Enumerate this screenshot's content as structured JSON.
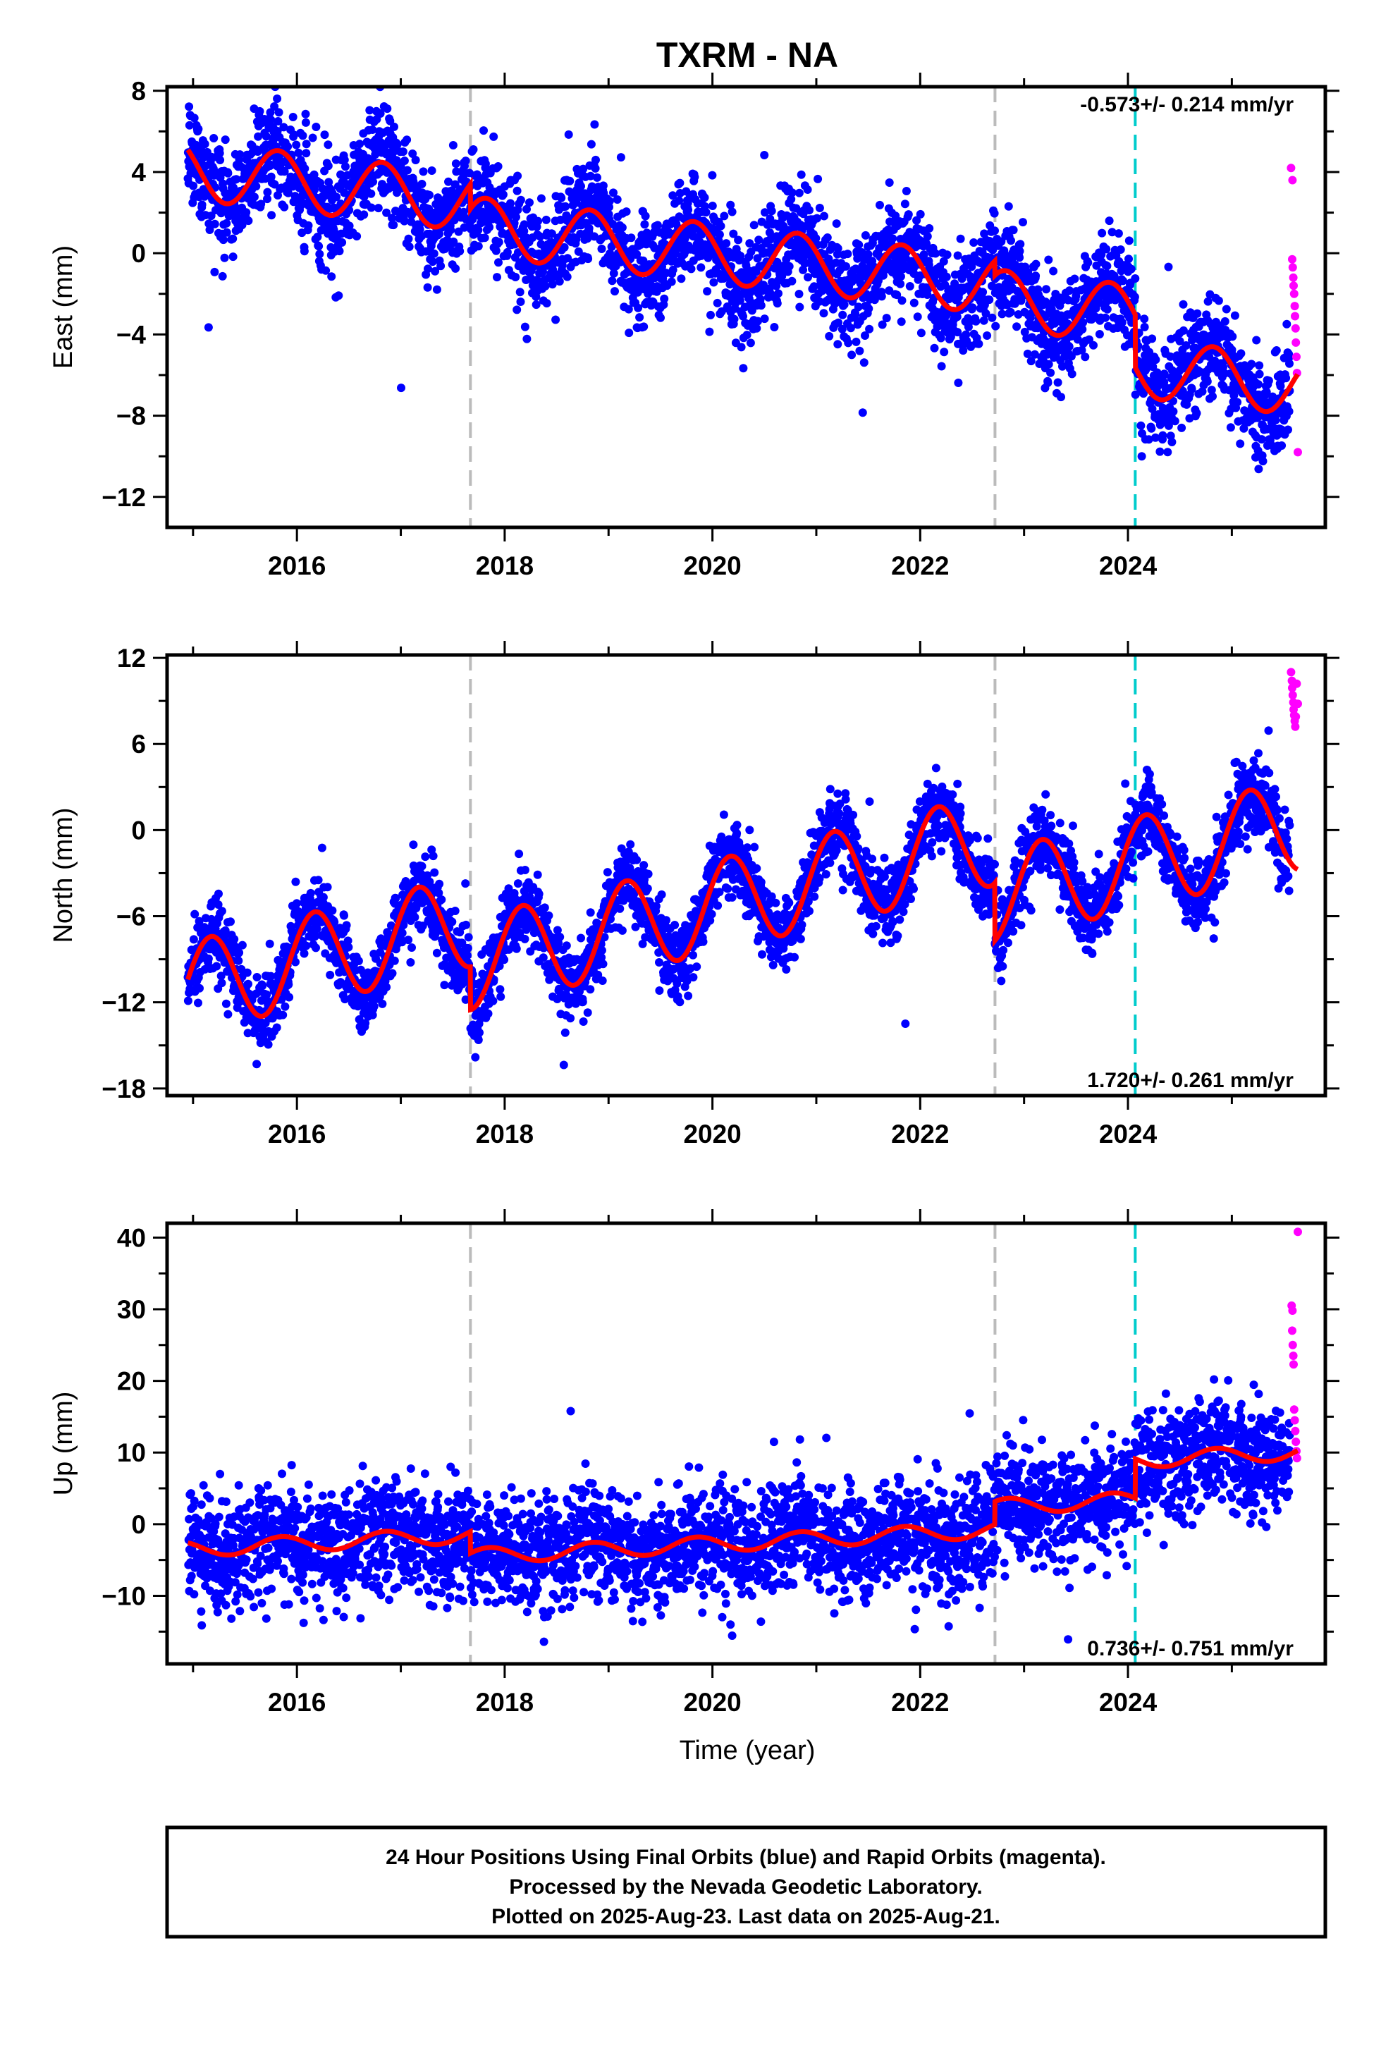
{
  "title": "TXRM - NA",
  "x_axis_label": "Time (year)",
  "footer": {
    "line1": "24 Hour Positions Using Final Orbits (blue) and Rapid Orbits (magenta).",
    "line2": "Processed by the Nevada Geodetic Laboratory.",
    "line3": "Plotted on 2025-Aug-23. Last data on 2025-Aug-21."
  },
  "colors": {
    "final_orbits": "#0000ff",
    "rapid_orbits": "#ff00ff",
    "model": "#ff0000",
    "equipment_change": "#bbbbbb",
    "earthquake": "#00cccc"
  },
  "chart_data": [
    {
      "type": "scatter",
      "component": "East",
      "ylabel": "East (mm)",
      "xlabel": "",
      "xlim": [
        2014.75,
        2025.9
      ],
      "ylim": [
        -13.5,
        8.2
      ],
      "x_ticks": [
        2016,
        2018,
        2020,
        2022,
        2024
      ],
      "y_ticks": [
        -12,
        -8,
        -4,
        0,
        4,
        8
      ],
      "rate_label": "-0.573+/- 0.214 mm/yr",
      "rate_position": "top-right",
      "offsets_gray": [
        2017.67,
        2022.72
      ],
      "offsets_cyan": [
        2024.07
      ],
      "data_start": 2014.95,
      "final_end": 2025.56,
      "model": {
        "x0": 2014.95,
        "y0": 4.1,
        "trend": -0.573,
        "annual_amp": 1.45,
        "annual_phase": 2.7,
        "noise": 1.3,
        "steps": [
          [
            2017.67,
            -1.2
          ],
          [
            2022.72,
            -0.7
          ],
          [
            2024.07,
            -2.6
          ]
        ]
      },
      "rapid": [
        [
          "2025-07-28",
          4.2
        ],
        [
          "2025-08-02",
          3.6
        ],
        [
          "2025-08-01",
          -0.3
        ],
        [
          "2025-08-03",
          -0.7
        ],
        [
          "2025-08-05",
          -1.2
        ],
        [
          "2025-08-06",
          -1.6
        ],
        [
          "2025-08-08",
          -2.0
        ],
        [
          "2025-08-10",
          -2.6
        ],
        [
          "2025-08-11",
          -3.1
        ],
        [
          "2025-08-13",
          -3.7
        ],
        [
          "2025-08-14",
          -4.4
        ],
        [
          "2025-08-16",
          -5.1
        ],
        [
          "2025-08-18",
          -5.9
        ],
        [
          "2025-08-21",
          -9.8
        ]
      ]
    },
    {
      "type": "scatter",
      "component": "North",
      "ylabel": "North (mm)",
      "xlabel": "",
      "xlim": [
        2014.75,
        2025.9
      ],
      "ylim": [
        -18.5,
        12.2
      ],
      "x_ticks": [
        2016,
        2018,
        2020,
        2022,
        2024
      ],
      "y_ticks": [
        -18,
        -12,
        -6,
        0,
        6,
        12
      ],
      "rate_label": "1.720+/- 0.261 mm/yr",
      "rate_position": "bottom-right",
      "offsets_gray": [
        2017.67,
        2022.72
      ],
      "offsets_cyan": [
        2024.07
      ],
      "data_start": 2014.95,
      "final_end": 2025.56,
      "model": {
        "x0": 2014.95,
        "y0": -11.0,
        "trend": 1.72,
        "annual_amp": 3.2,
        "annual_phase": 0.5,
        "noise": 1.3,
        "steps": [
          [
            2017.67,
            -3.0
          ],
          [
            2022.72,
            -4.0
          ],
          [
            2024.07,
            0.0
          ]
        ]
      },
      "rapid": [
        [
          "2025-07-28",
          11.0
        ],
        [
          "2025-07-31",
          10.4
        ],
        [
          "2025-08-01",
          9.9
        ],
        [
          "2025-08-03",
          9.4
        ],
        [
          "2025-08-05",
          8.9
        ],
        [
          "2025-08-06",
          8.4
        ],
        [
          "2025-08-08",
          8.0
        ],
        [
          "2025-08-10",
          7.6
        ],
        [
          "2025-08-12",
          7.2
        ],
        [
          "2025-08-14",
          7.9
        ],
        [
          "2025-08-17",
          10.2
        ],
        [
          "2025-08-21",
          8.8
        ]
      ]
    },
    {
      "type": "scatter",
      "component": "Up",
      "ylabel": "Up (mm)",
      "xlabel": "Time (year)",
      "xlim": [
        2014.75,
        2025.9
      ],
      "ylim": [
        -19.5,
        42
      ],
      "x_ticks": [
        2016,
        2018,
        2020,
        2022,
        2024
      ],
      "y_ticks": [
        -10,
        0,
        10,
        20,
        30,
        40
      ],
      "rate_label": "0.736+/- 0.751 mm/yr",
      "rate_position": "bottom-right",
      "offsets_gray": [
        2017.67,
        2022.72
      ],
      "offsets_cyan": [
        2024.07
      ],
      "data_start": 2014.95,
      "final_end": 2025.56,
      "model": {
        "x0": 2014.95,
        "y0": -3.5,
        "trend": 0.736,
        "annual_amp": 1.1,
        "annual_phase": 2.5,
        "noise": 3.9,
        "steps": [
          [
            2017.67,
            -3.0
          ],
          [
            2022.72,
            3.2
          ],
          [
            2024.07,
            5.5
          ]
        ]
      },
      "rapid": [
        [
          "2025-08-21",
          40.8
        ],
        [
          "2025-07-30",
          30.5
        ],
        [
          "2025-08-02",
          29.8
        ],
        [
          "2025-08-01",
          27.0
        ],
        [
          "2025-08-03",
          25.0
        ],
        [
          "2025-08-05",
          23.5
        ],
        [
          "2025-08-06",
          22.3
        ],
        [
          "2025-08-08",
          16.0
        ],
        [
          "2025-08-10",
          14.5
        ],
        [
          "2025-08-12",
          13.0
        ],
        [
          "2025-08-14",
          11.5
        ],
        [
          "2025-08-16",
          10.2
        ],
        [
          "2025-08-18",
          9.2
        ]
      ]
    }
  ]
}
